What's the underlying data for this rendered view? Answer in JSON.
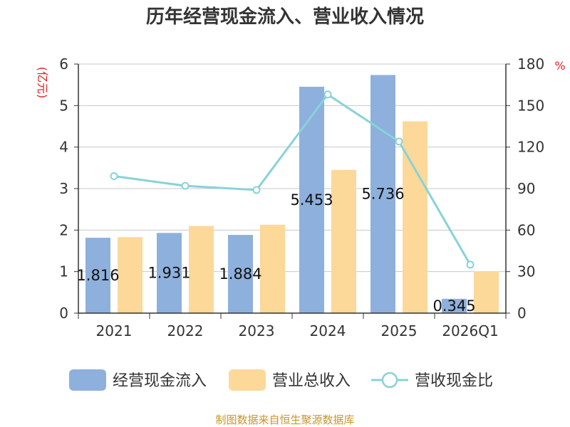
{
  "chart_data": {
    "type": "bar",
    "title": "历年经营现金流入、营业收入情况",
    "ylabel": "(亿元)",
    "y2label": "%",
    "ylim": [
      0,
      6
    ],
    "y2lim": [
      0,
      180
    ],
    "yticks": [
      "0",
      "1",
      "2",
      "3",
      "4",
      "5",
      "6"
    ],
    "y2ticks": [
      "0",
      "30",
      "60",
      "90",
      "120",
      "150",
      "180"
    ],
    "categories": [
      "2021",
      "2022",
      "2023",
      "2024",
      "2025",
      "2026Q1"
    ],
    "series": [
      {
        "name": "经营现金流入",
        "kind": "bar",
        "axis": "left",
        "color": "#8eb0dc",
        "values": [
          1.816,
          1.931,
          1.884,
          5.453,
          5.736,
          0.345
        ],
        "labels": [
          "1.816",
          "1.931",
          "1.884",
          "5.453",
          "5.736",
          "0.345"
        ]
      },
      {
        "name": "营业总收入",
        "kind": "bar",
        "axis": "left",
        "color": "#fcd899",
        "values": [
          1.83,
          2.1,
          2.13,
          3.45,
          4.62,
          1.01
        ]
      },
      {
        "name": "营收现金比",
        "kind": "line",
        "axis": "right",
        "color": "#88d3d8",
        "values": [
          99,
          92,
          89,
          158,
          124,
          35
        ]
      }
    ],
    "grid": true,
    "legend_position": "bottom",
    "source": "制图数据来自恒生聚源数据库"
  }
}
